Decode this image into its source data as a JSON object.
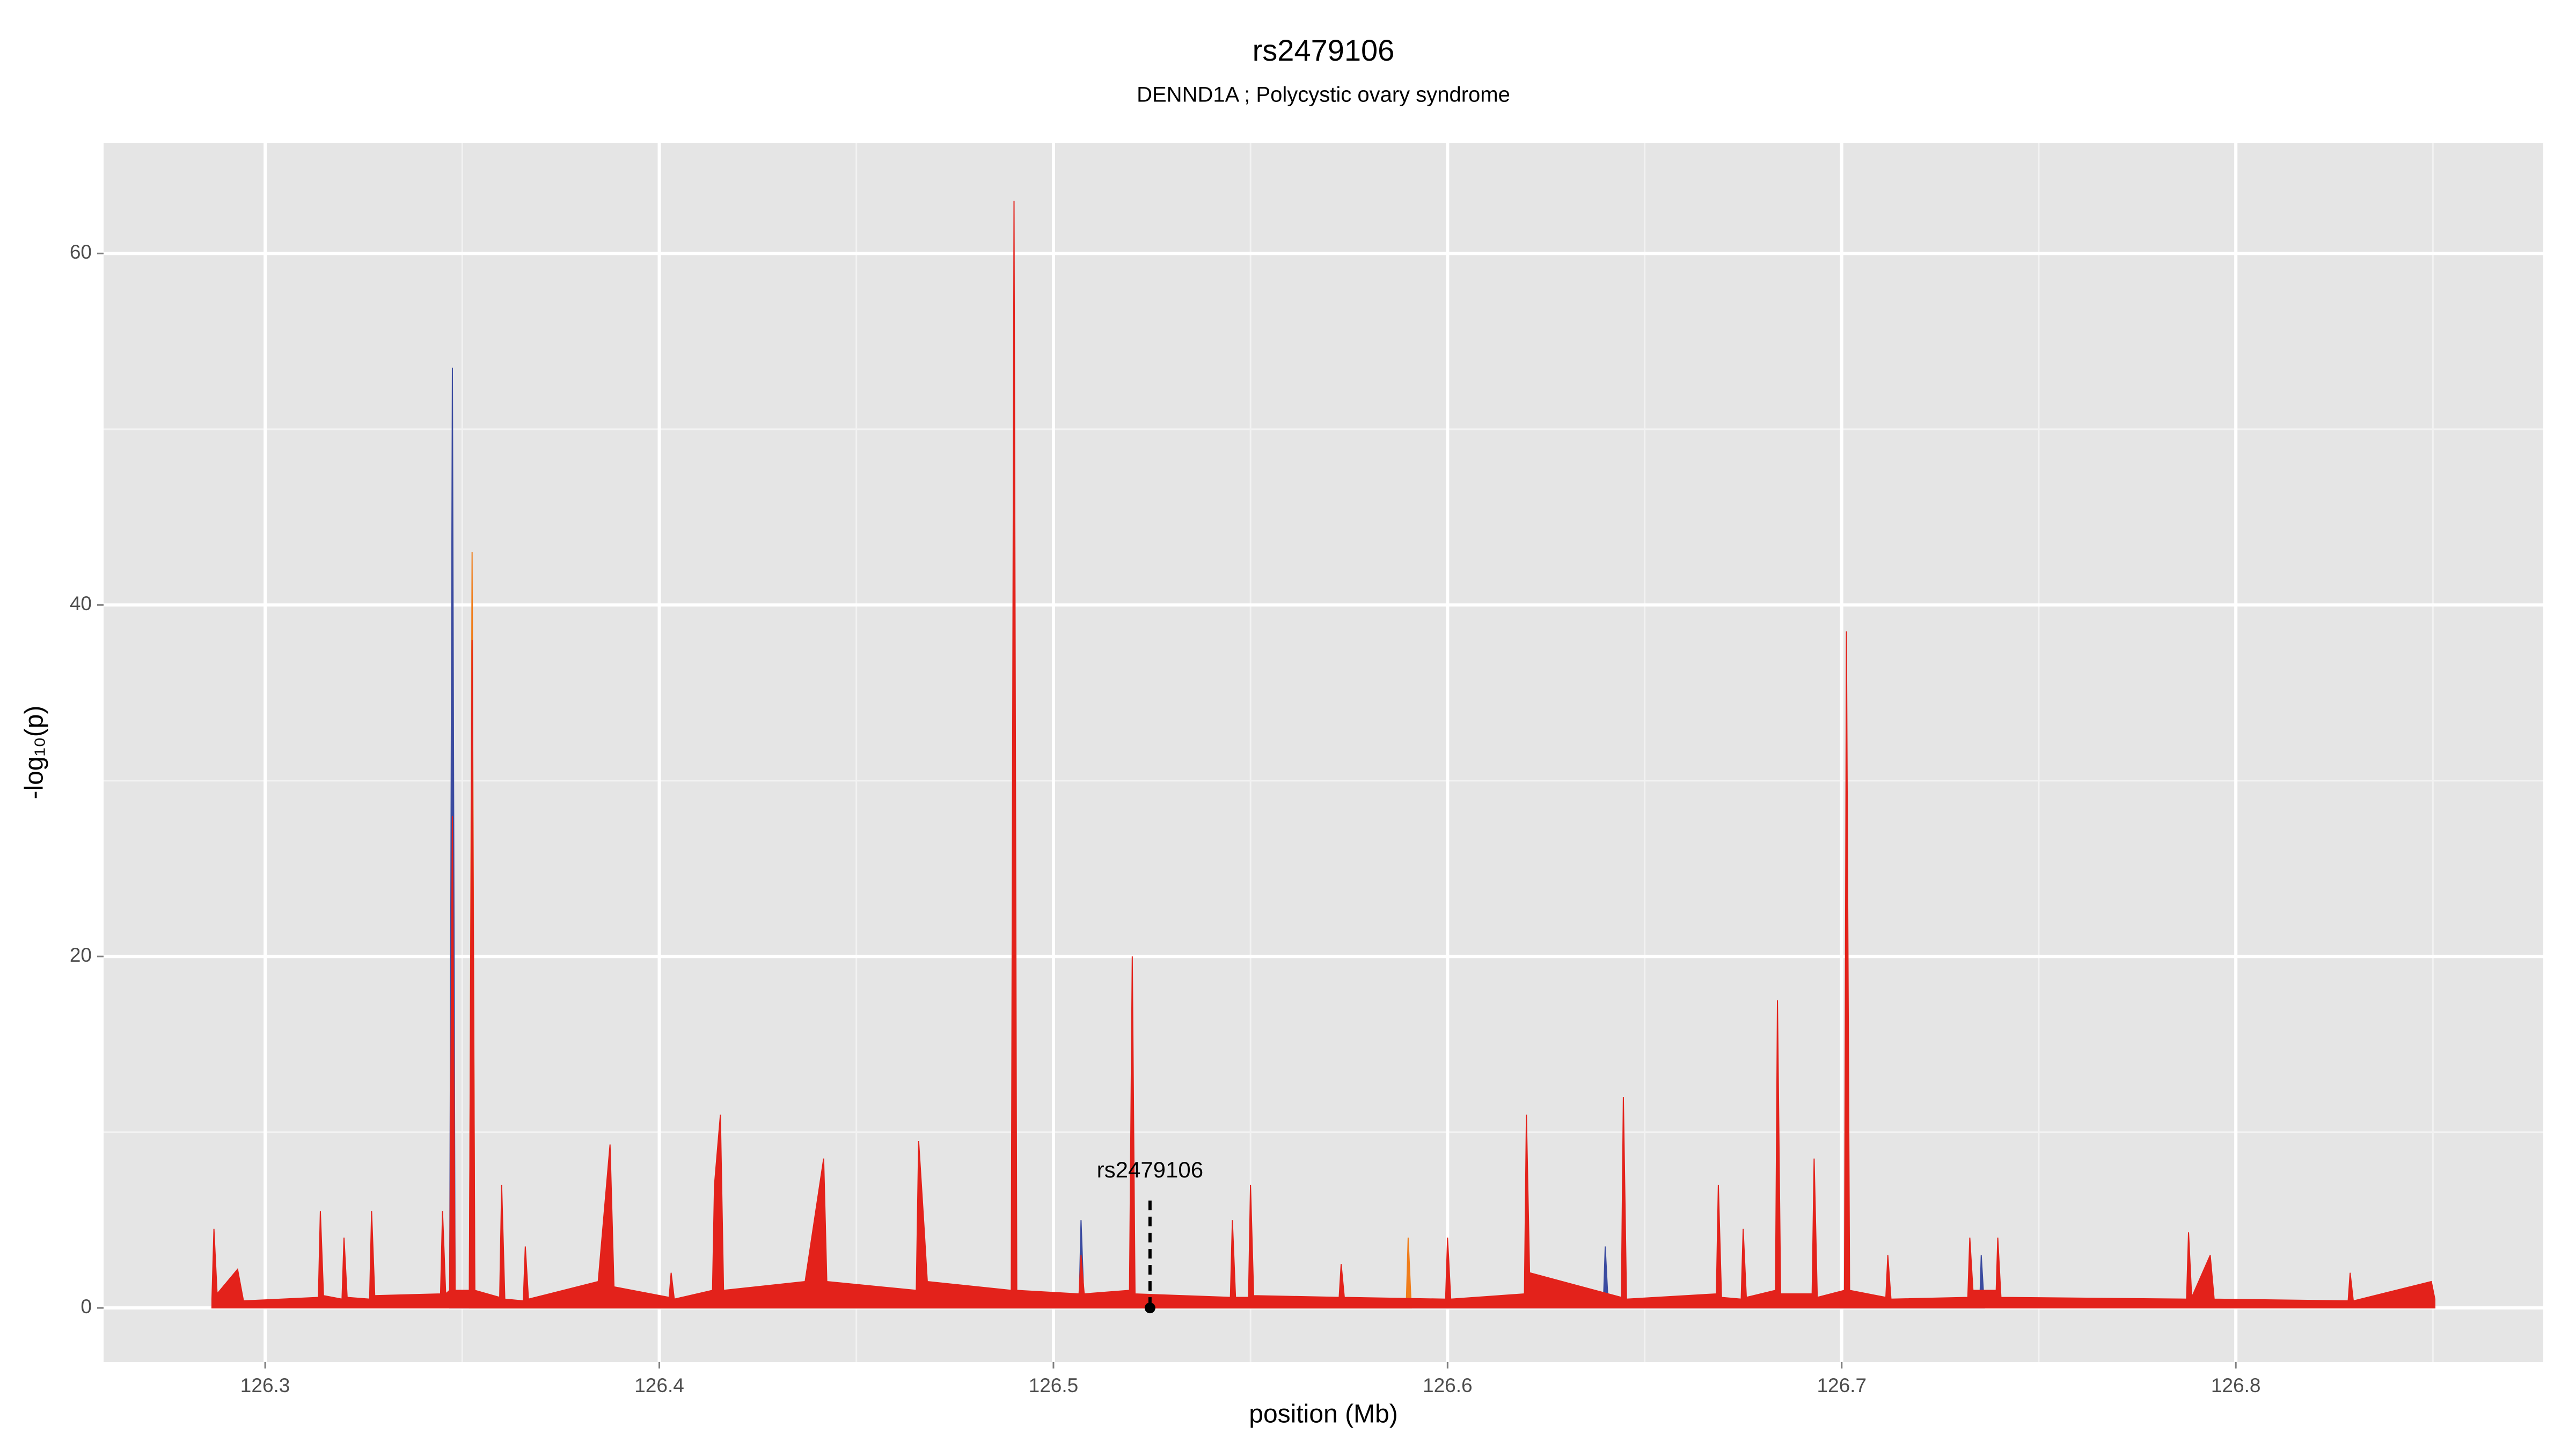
{
  "chart_data": {
    "type": "area",
    "title": "rs2479106",
    "subtitle": "DENND1A ; Polycystic ovary syndrome",
    "x_label": "position (Mb)",
    "y_label": "-log₁₀(p)",
    "xlim": [
      126.259,
      126.878
    ],
    "ylim": [
      -3.08,
      66.3
    ],
    "xticks": [
      126.3,
      126.4,
      126.5,
      126.6,
      126.7,
      126.8
    ],
    "yticks": [
      0,
      20,
      40,
      60
    ],
    "x_minor_grid": [
      126.35,
      126.45,
      126.55,
      126.65,
      126.75,
      126.85
    ],
    "y_minor_grid": [
      10,
      30,
      50
    ],
    "grid": true,
    "series": [
      {
        "color": "#3b4ba0",
        "x": [
          126.3468,
          126.3475,
          126.3482,
          126.5065,
          126.507,
          126.5078,
          126.6395,
          126.64,
          126.6408,
          126.735,
          126.7354,
          126.7362
        ],
        "values": [
          0,
          53.5,
          0,
          0,
          5,
          0,
          0,
          3.5,
          0,
          0,
          3,
          0
        ]
      },
      {
        "color": "#f07d1a",
        "x": [
          126.3518,
          126.3525,
          126.3532,
          126.5895,
          126.59,
          126.5908
        ],
        "values": [
          0,
          43,
          0,
          0,
          4,
          0
        ]
      },
      {
        "color": "#e3221b",
        "x": [
          126.2865,
          126.287,
          126.2878,
          126.293,
          126.2945,
          126.3135,
          126.314,
          126.3148,
          126.3195,
          126.32,
          126.3208,
          126.3265,
          126.327,
          126.3278,
          126.3445,
          126.345,
          126.3458,
          126.3468,
          126.3475,
          126.3482,
          126.3518,
          126.3525,
          126.3532,
          126.3595,
          126.36,
          126.3608,
          126.3655,
          126.366,
          126.3668,
          126.3845,
          126.3875,
          126.3885,
          126.4025,
          126.403,
          126.4038,
          126.4135,
          126.414,
          126.4155,
          126.4163,
          126.437,
          126.4417,
          126.4425,
          126.4652,
          126.4658,
          126.4672,
          126.468,
          126.4893,
          126.49,
          126.4907,
          126.5065,
          126.507,
          126.5078,
          126.5193,
          126.52,
          126.5207,
          126.5449,
          126.5454,
          126.5462,
          126.5495,
          126.55,
          126.5508,
          126.5725,
          126.573,
          126.5738,
          126.5995,
          126.6,
          126.6008,
          126.6195,
          126.62,
          126.6208,
          126.6441,
          126.6446,
          126.6454,
          126.6682,
          126.6687,
          126.6695,
          126.6745,
          126.675,
          126.6758,
          126.6832,
          126.6837,
          126.6845,
          126.6925,
          126.693,
          126.6938,
          126.7007,
          126.7012,
          126.702,
          126.7112,
          126.7117,
          126.7125,
          126.732,
          126.7325,
          126.7333,
          126.7392,
          126.7396,
          126.7404,
          126.7875,
          126.788,
          126.7888,
          126.7935,
          126.7945,
          126.8285,
          126.829,
          126.8298,
          126.8496,
          126.8505
        ],
        "values": [
          0.5,
          4.5,
          0.8,
          2.2,
          0.4,
          0.6,
          5.5,
          0.7,
          0.5,
          4,
          0.6,
          0.5,
          5.5,
          0.7,
          0.8,
          5.5,
          0.8,
          1,
          28,
          1,
          1,
          38,
          1,
          0.6,
          7,
          0.5,
          0.4,
          3.5,
          0.5,
          1.5,
          9.3,
          1.2,
          0.6,
          2,
          0.5,
          1,
          7,
          11,
          1,
          1.5,
          8.5,
          1.5,
          1,
          9.5,
          4.5,
          1.5,
          1,
          63,
          1,
          0.8,
          3,
          0.8,
          1,
          20,
          0.8,
          0.6,
          5,
          0.6,
          0.6,
          7,
          0.7,
          0.6,
          2.5,
          0.6,
          0.5,
          4,
          0.5,
          0.8,
          11,
          2,
          0.6,
          12,
          0.5,
          0.8,
          7,
          0.6,
          0.5,
          4.5,
          0.6,
          1,
          17.5,
          0.8,
          0.8,
          8.5,
          0.6,
          1,
          38.5,
          1,
          0.6,
          3,
          0.5,
          0.6,
          4,
          1,
          1,
          4,
          0.6,
          0.5,
          4.3,
          0.6,
          3,
          0.5,
          0.4,
          2,
          0.4,
          1.5,
          0.5
        ]
      }
    ],
    "annotations": [
      {
        "label": "rs2479106",
        "x": 126.5245,
        "y": 0
      }
    ]
  }
}
